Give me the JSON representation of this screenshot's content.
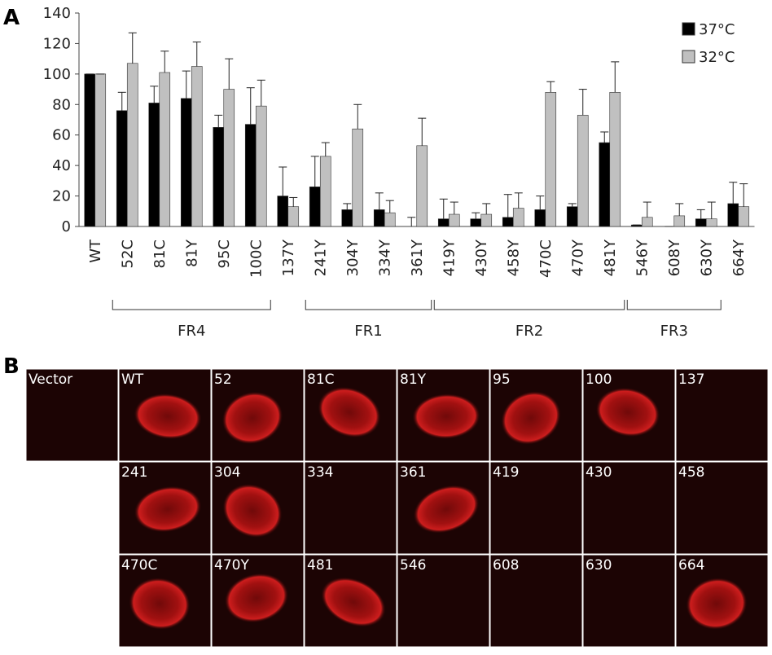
{
  "chart_data": {
    "type": "bar",
    "panel_label": "A",
    "categories": [
      "WT",
      "52C",
      "81C",
      "81Y",
      "95C",
      "100C",
      "137Y",
      "241Y",
      "304Y",
      "334Y",
      "361Y",
      "419Y",
      "430Y",
      "458Y",
      "470C",
      "470Y",
      "481Y",
      "546Y",
      "608Y",
      "630Y",
      "664Y"
    ],
    "series": [
      {
        "name": "37°C",
        "color": "#000000",
        "values": [
          100,
          76,
          81,
          84,
          65,
          67,
          20,
          26,
          11,
          11,
          0,
          5,
          5,
          6,
          11,
          13,
          55,
          1,
          0,
          5,
          15
        ],
        "errors": [
          0,
          12,
          11,
          18,
          8,
          24,
          19,
          20,
          4,
          11,
          6,
          13,
          4,
          15,
          9,
          2,
          7,
          0,
          0,
          6,
          14
        ]
      },
      {
        "name": "32°C",
        "color": "#c0c0c0",
        "values": [
          100,
          107,
          101,
          105,
          90,
          79,
          13,
          46,
          64,
          9,
          53,
          8,
          8,
          12,
          88,
          73,
          88,
          6,
          7,
          5,
          13
        ],
        "errors": [
          0,
          20,
          14,
          16,
          20,
          17,
          6,
          9,
          16,
          8,
          18,
          8,
          7,
          10,
          7,
          17,
          20,
          10,
          8,
          11,
          15
        ]
      }
    ],
    "groups": [
      {
        "label": "FR4",
        "start": 1,
        "end": 5
      },
      {
        "label": "FR1",
        "start": 7,
        "end": 10
      },
      {
        "label": "FR2",
        "start": 11,
        "end": 16
      },
      {
        "label": "FR3",
        "start": 17,
        "end": 19
      }
    ],
    "ylim": [
      0,
      140
    ],
    "yticks": [
      0,
      20,
      40,
      60,
      80,
      100,
      120,
      140
    ],
    "legend": "top-right"
  },
  "panel_b": {
    "panel_label": "B",
    "rows": [
      [
        "Vector",
        "WT",
        "52",
        "81C",
        "81Y",
        "95",
        "100",
        "137"
      ],
      [
        "241",
        "304",
        "334",
        "361",
        "419",
        "430",
        "458"
      ],
      [
        "470C",
        "470Y",
        "481",
        "546",
        "608",
        "630",
        "664"
      ]
    ]
  }
}
